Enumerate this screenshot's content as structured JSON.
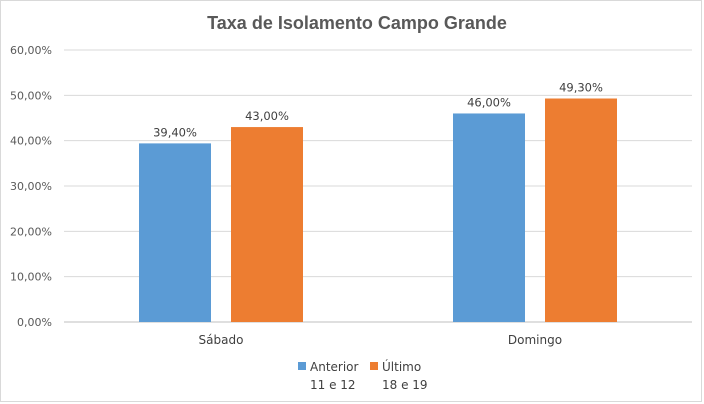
{
  "chart_data": {
    "type": "bar",
    "title": "Taxa de Isolamento Campo Grande",
    "categories": [
      "Sábado",
      "Domingo"
    ],
    "series": [
      {
        "name_lines": [
          "Anterior",
          "11 e 12"
        ],
        "color": "#5b9bd5",
        "values": [
          39.4,
          46.0
        ],
        "labels": [
          "39,40%",
          "46,00%"
        ]
      },
      {
        "name_lines": [
          "Último",
          "18 e 19"
        ],
        "color": "#ed7d31",
        "values": [
          43.0,
          49.3
        ],
        "labels": [
          "43,00%",
          "49,30%"
        ]
      }
    ],
    "ylim": [
      0,
      60
    ],
    "yticks": [
      0,
      10,
      20,
      30,
      40,
      50,
      60
    ],
    "ytick_labels": [
      "0,00%",
      "10,00%",
      "20,00%",
      "30,00%",
      "40,00%",
      "50,00%",
      "60,00%"
    ],
    "grid": true,
    "legend": "bottom"
  }
}
